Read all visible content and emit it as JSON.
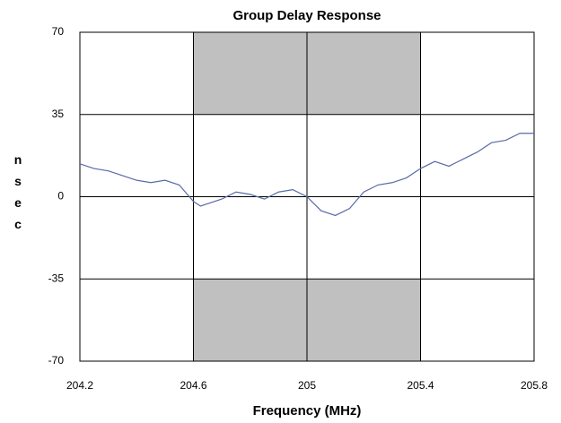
{
  "chart_data": {
    "type": "line",
    "title": "Group Delay Response",
    "x_label": "Frequency (MHz)",
    "y_label": "nsec",
    "xlim": [
      204.2,
      205.8
    ],
    "xticks": [
      204.2,
      204.6,
      205,
      205.4,
      205.8
    ],
    "ylim": [
      -70,
      70
    ],
    "yticks": [
      70,
      35,
      0,
      -35,
      -70
    ],
    "grid": true,
    "shaded_regions": [
      {
        "x": [
          204.6,
          205.4
        ],
        "y": [
          35,
          70
        ]
      },
      {
        "x": [
          204.6,
          205.4
        ],
        "y": [
          -70,
          -35
        ]
      }
    ],
    "shade_color": "#c0c0c0",
    "series": [
      {
        "color": "#5a6aa6",
        "x": [
          204.2,
          204.25,
          204.3,
          204.35,
          204.4,
          204.45,
          204.5,
          204.55,
          204.6,
          204.625,
          204.65,
          204.7,
          204.75,
          204.8,
          204.85,
          204.9,
          204.95,
          205.0,
          205.05,
          205.1,
          205.15,
          205.2,
          205.25,
          205.3,
          205.35,
          205.4,
          205.45,
          205.5,
          205.55,
          205.6,
          205.65,
          205.7,
          205.75,
          205.8
        ],
        "values": [
          14,
          12,
          11,
          9,
          7,
          6,
          7,
          5,
          -2,
          -4,
          -3,
          -1,
          2,
          1,
          -1,
          2,
          3,
          0,
          -6,
          -8,
          -5,
          2,
          5,
          6,
          8,
          12,
          15,
          13,
          16,
          19,
          23,
          24,
          27,
          27
        ]
      }
    ]
  }
}
